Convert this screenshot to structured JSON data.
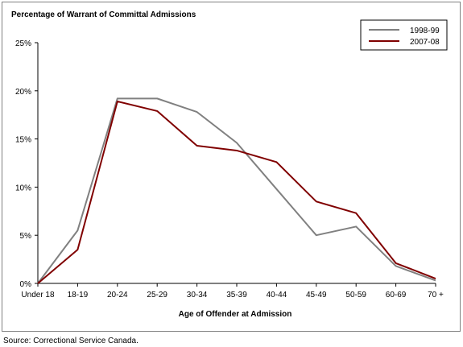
{
  "source": "Source:  Correctional Service Canada.",
  "chart_data": {
    "type": "line",
    "title": "Percentage of Warrant of Committal Admissions",
    "xlabel": "Age of Offender at Admission",
    "ylabel": "",
    "categories": [
      "Under 18",
      "18-19",
      "20-24",
      "25-29",
      "30-34",
      "35-39",
      "40-44",
      "45-49",
      "50-59",
      "60-69",
      "70 +"
    ],
    "ylim": [
      0,
      25
    ],
    "yticks": [
      0,
      5,
      10,
      15,
      20,
      25
    ],
    "ytick_labels": [
      "0%",
      "5%",
      "10%",
      "15%",
      "20%",
      "25%"
    ],
    "grid": false,
    "legend_position": "top-right",
    "series": [
      {
        "name": "1998-99",
        "color": "#808080",
        "values": [
          0.0,
          5.5,
          19.2,
          19.2,
          17.8,
          14.6,
          9.8,
          5.0,
          5.9,
          1.8,
          0.3
        ]
      },
      {
        "name": "2007-08",
        "color": "#800000",
        "values": [
          0.0,
          3.5,
          18.9,
          17.9,
          14.3,
          13.8,
          12.6,
          8.5,
          7.3,
          2.1,
          0.5
        ]
      }
    ]
  }
}
